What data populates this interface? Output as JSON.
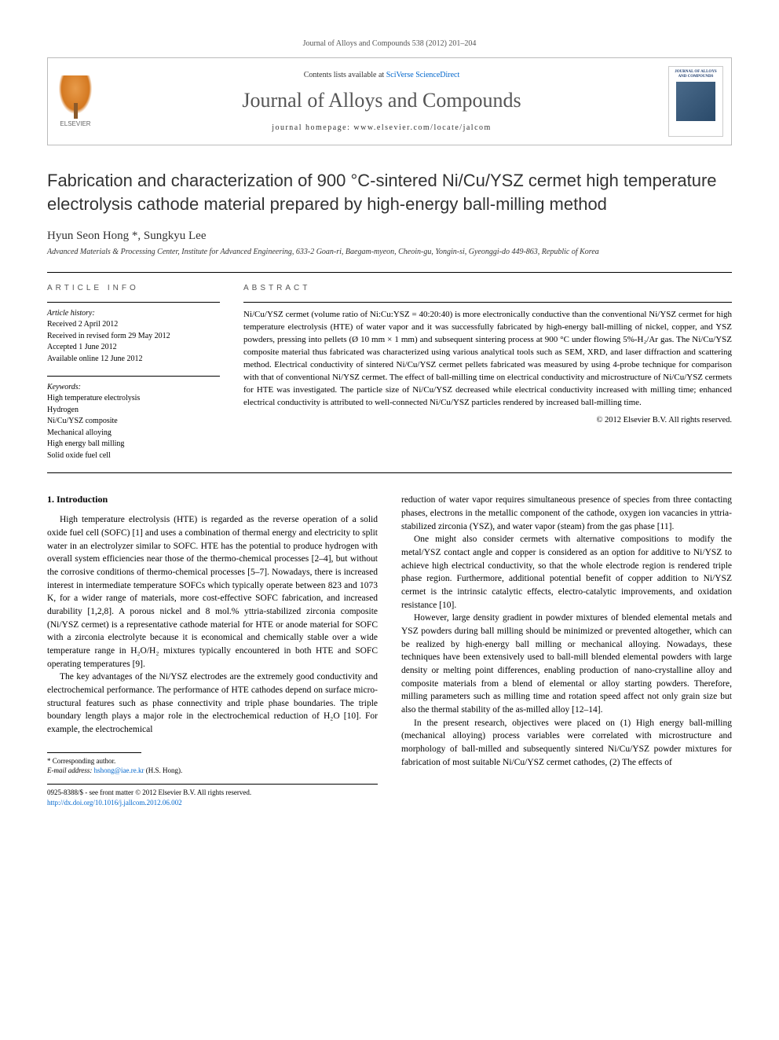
{
  "header": {
    "journal_ref": "Journal of Alloys and Compounds 538 (2012) 201–204",
    "contents_text": "Contents lists available at ",
    "contents_link": "SciVerse ScienceDirect",
    "journal_name": "Journal of Alloys and Compounds",
    "homepage_label": "journal homepage: www.elsevier.com/locate/jalcom",
    "elsevier_label": "ELSEVIER",
    "cover_title": "JOURNAL OF ALLOYS AND COMPOUNDS"
  },
  "article": {
    "title": "Fabrication and characterization of 900 °C-sintered Ni/Cu/YSZ cermet high temperature electrolysis cathode material prepared by high-energy ball-milling method",
    "authors": "Hyun Seon Hong *, Sungkyu Lee",
    "affiliation": "Advanced Materials & Processing Center, Institute for Advanced Engineering, 633-2 Goan-ri, Baegam-myeon, Cheoin-gu, Yongin-si, Gyeonggi-do 449-863, Republic of Korea"
  },
  "info": {
    "section_label": "ARTICLE INFO",
    "history_label": "Article history:",
    "history": [
      "Received 2 April 2012",
      "Received in revised form 29 May 2012",
      "Accepted 1 June 2012",
      "Available online 12 June 2012"
    ],
    "keywords_label": "Keywords:",
    "keywords": [
      "High temperature electrolysis",
      "Hydrogen",
      "Ni/Cu/YSZ composite",
      "Mechanical alloying",
      "High energy ball milling",
      "Solid oxide fuel cell"
    ]
  },
  "abstract": {
    "section_label": "ABSTRACT",
    "text": "Ni/Cu/YSZ cermet (volume ratio of Ni:Cu:YSZ = 40:20:40) is more electronically conductive than the conventional Ni/YSZ cermet for high temperature electrolysis (HTE) of water vapor and it was successfully fabricated by high-energy ball-milling of nickel, copper, and YSZ powders, pressing into pellets (Ø 10 mm × 1 mm) and subsequent sintering process at 900 °C under flowing 5%-H₂/Ar gas. The Ni/Cu/YSZ composite material thus fabricated was characterized using various analytical tools such as SEM, XRD, and laser diffraction and scattering method. Electrical conductivity of sintered Ni/Cu/YSZ cermet pellets fabricated was measured by using 4-probe technique for comparison with that of conventional Ni/YSZ cermet. The effect of ball-milling time on electrical conductivity and microstructure of Ni/Cu/YSZ cermets for HTE was investigated. The particle size of Ni/Cu/YSZ decreased while electrical conductivity increased with milling time; enhanced electrical conductivity is attributed to well-connected Ni/Cu/YSZ particles rendered by increased ball-milling time.",
    "copyright": "© 2012 Elsevier B.V. All rights reserved."
  },
  "body": {
    "intro_heading": "1. Introduction",
    "left_p1": "High temperature electrolysis (HTE) is regarded as the reverse operation of a solid oxide fuel cell (SOFC) [1] and uses a combination of thermal energy and electricity to split water in an electrolyzer similar to SOFC. HTE has the potential to produce hydrogen with overall system efficiencies near those of the thermo-chemical processes [2–4], but without the corrosive conditions of thermo-chemical processes [5–7]. Nowadays, there is increased interest in intermediate temperature SOFCs which typically operate between 823 and 1073 K, for a wider range of materials, more cost-effective SOFC fabrication, and increased durability [1,2,8]. A porous nickel and 8 mol.% yttria-stabilized zirconia composite (Ni/YSZ cermet) is a representative cathode material for HTE or anode material for SOFC with a zirconia electrolyte because it is economical and chemically stable over a wide temperature range in H₂O/H₂ mixtures typically encountered in both HTE and SOFC operating temperatures [9].",
    "left_p2": "The key advantages of the Ni/YSZ electrodes are the extremely good conductivity and electrochemical performance. The performance of HTE cathodes depend on surface micro-structural features such as phase connectivity and triple phase boundaries. The triple boundary length plays a major role in the electrochemical reduction of H₂O [10]. For example, the electrochemical",
    "right_p1": "reduction of water vapor requires simultaneous presence of species from three contacting phases, electrons in the metallic component of the cathode, oxygen ion vacancies in yttria-stabilized zirconia (YSZ), and water vapor (steam) from the gas phase [11].",
    "right_p2": "One might also consider cermets with alternative compositions to modify the metal/YSZ contact angle and copper is considered as an option for additive to Ni/YSZ to achieve high electrical conductivity, so that the whole electrode region is rendered triple phase region. Furthermore, additional potential benefit of copper addition to Ni/YSZ cermet is the intrinsic catalytic effects, electro-catalytic improvements, and oxidation resistance [10].",
    "right_p3": "However, large density gradient in powder mixtures of blended elemental metals and YSZ powders during ball milling should be minimized or prevented altogether, which can be realized by high-energy ball milling or mechanical alloying. Nowadays, these techniques have been extensively used to ball-mill blended elemental powders with large density or melting point differences, enabling production of nano-crystalline alloy and composite materials from a blend of elemental or alloy starting powders. Therefore, milling parameters such as milling time and rotation speed affect not only grain size but also the thermal stability of the as-milled alloy [12–14].",
    "right_p4": "In the present research, objectives were placed on (1) High energy ball-milling (mechanical alloying) process variables were correlated with microstructure and morphology of ball-milled and subsequently sintered Ni/Cu/YSZ powder mixtures for fabrication of most suitable Ni/Cu/YSZ cermet cathodes, (2) The effects of"
  },
  "footer": {
    "corr_label": "* Corresponding author.",
    "email_label": "E-mail address: ",
    "email": "hshong@iae.re.kr",
    "email_suffix": " (H.S. Hong).",
    "issn": "0925-8388/$ - see front matter © 2012 Elsevier B.V. All rights reserved.",
    "doi": "http://dx.doi.org/10.1016/j.jallcom.2012.06.002"
  },
  "refs": {
    "r1": "[1]",
    "r24": "[2–4]",
    "r57": "[5–7]",
    "r128": "[1,2,8]",
    "r9": "[9]",
    "r10": "[10]",
    "r11": "[11]",
    "r1214": "[12–14]"
  },
  "colors": {
    "link": "#0066cc",
    "text": "#000000",
    "muted": "#555555",
    "border": "#bbbbbb"
  }
}
